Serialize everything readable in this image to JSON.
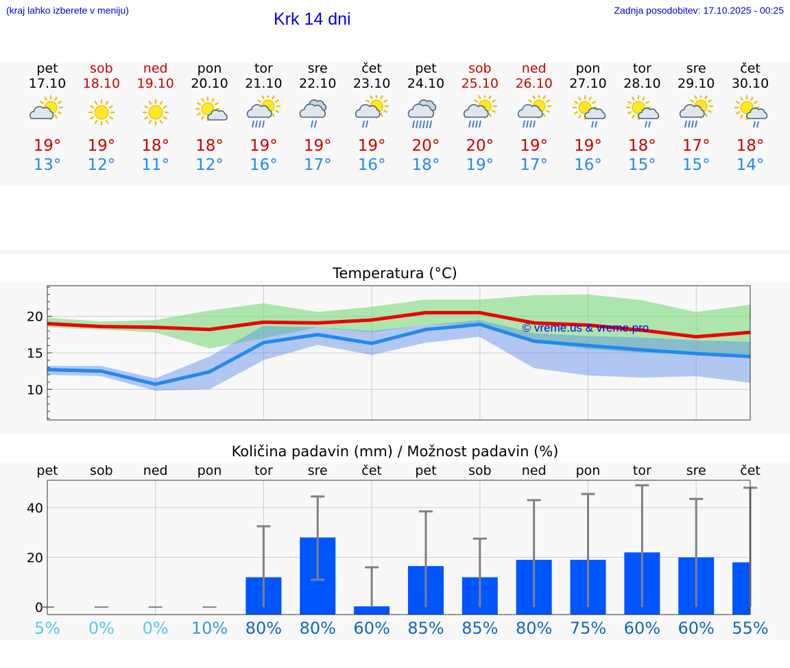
{
  "header": {
    "menu_hint": "(kraj lahko izberete v meniju)",
    "title": "Krk 14 dni",
    "last_update": "Zadnja posodobitev: 17.10.2025 - 00:25"
  },
  "colors": {
    "max": "#cc0000",
    "min": "#2288ee",
    "weekend": "#cc0000",
    "bar": "#0055ff",
    "link": "#0000dd"
  },
  "days": [
    {
      "name": "pet",
      "date": "17.10",
      "weekend": false,
      "icon": "sun-cloud-icon",
      "max": "19°",
      "min": "13°"
    },
    {
      "name": "sob",
      "date": "18.10",
      "weekend": true,
      "icon": "sun-icon",
      "max": "19°",
      "min": "12°"
    },
    {
      "name": "ned",
      "date": "19.10",
      "weekend": true,
      "icon": "sun-icon",
      "max": "18°",
      "min": "11°"
    },
    {
      "name": "pon",
      "date": "20.10",
      "weekend": false,
      "icon": "sun-small-cloud-icon",
      "max": "18°",
      "min": "12°"
    },
    {
      "name": "tor",
      "date": "21.10",
      "weekend": false,
      "icon": "sun-cloud-rain-icon",
      "max": "19°",
      "min": "16°"
    },
    {
      "name": "sre",
      "date": "22.10",
      "weekend": false,
      "icon": "cloud-rain-icon",
      "max": "19°",
      "min": "17°"
    },
    {
      "name": "čet",
      "date": "23.10",
      "weekend": false,
      "icon": "sun-cloud-light-rain-icon",
      "max": "19°",
      "min": "16°"
    },
    {
      "name": "pet",
      "date": "24.10",
      "weekend": false,
      "icon": "cloud-heavy-rain-icon",
      "max": "20°",
      "min": "18°"
    },
    {
      "name": "sob",
      "date": "25.10",
      "weekend": true,
      "icon": "sun-cloud-rain-icon",
      "max": "20°",
      "min": "19°"
    },
    {
      "name": "ned",
      "date": "26.10",
      "weekend": true,
      "icon": "sun-cloud-rain-icon",
      "max": "19°",
      "min": "17°"
    },
    {
      "name": "pon",
      "date": "27.10",
      "weekend": false,
      "icon": "sun-small-cloud-light-rain-icon",
      "max": "19°",
      "min": "16°"
    },
    {
      "name": "tor",
      "date": "28.10",
      "weekend": false,
      "icon": "sun-small-cloud-light-rain-icon",
      "max": "18°",
      "min": "15°"
    },
    {
      "name": "sre",
      "date": "29.10",
      "weekend": false,
      "icon": "sun-cloud-rain-icon",
      "max": "17°",
      "min": "15°"
    },
    {
      "name": "čet",
      "date": "30.10",
      "weekend": false,
      "icon": "sun-small-cloud-light-rain-icon",
      "max": "18°",
      "min": "14°"
    }
  ],
  "chart_data": [
    {
      "type": "line",
      "title": "Temperatura (°C)",
      "watermark": "© vreme.us & vreme.pro",
      "x": [
        0,
        1,
        2,
        3,
        4,
        5,
        6,
        7,
        8,
        9,
        10,
        11,
        12,
        13
      ],
      "ylim": [
        5.8,
        24.2
      ],
      "yticks": [
        10,
        15,
        20
      ],
      "series": [
        {
          "name": "max",
          "color": "#ee0000",
          "values": [
            19.0,
            18.6,
            18.5,
            18.2,
            19.2,
            19.1,
            19.5,
            20.5,
            20.5,
            19.1,
            18.8,
            18.1,
            17.2,
            17.8
          ],
          "band_low": [
            18.5,
            18.2,
            17.8,
            15.6,
            17.0,
            18.5,
            17.8,
            18.8,
            19.0,
            16.5,
            15.5,
            15.0,
            14.8,
            14.5
          ],
          "band_high": [
            19.8,
            19.3,
            19.5,
            20.8,
            21.8,
            20.6,
            21.3,
            22.3,
            22.3,
            22.9,
            23.0,
            22.2,
            20.6,
            21.6
          ]
        },
        {
          "name": "min",
          "color": "#2288ee",
          "values": [
            12.7,
            12.5,
            10.7,
            12.4,
            16.4,
            17.5,
            16.3,
            18.2,
            18.9,
            16.6,
            16.0,
            15.4,
            14.9,
            14.5
          ],
          "band_low": [
            12.0,
            11.8,
            9.8,
            10.0,
            14.0,
            16.1,
            14.7,
            16.4,
            17.2,
            12.9,
            11.9,
            11.6,
            11.8,
            10.9
          ],
          "band_high": [
            13.2,
            13.2,
            11.5,
            14.5,
            18.7,
            18.5,
            18.0,
            18.8,
            19.5,
            17.7,
            17.3,
            17.1,
            16.7,
            16.5
          ]
        }
      ]
    },
    {
      "type": "bar",
      "title": "Količina padavin (mm) / Možnost padavin (%)",
      "categories": [
        "pet",
        "sob",
        "ned",
        "pon",
        "tor",
        "sre",
        "čet",
        "pet",
        "sob",
        "ned",
        "pon",
        "tor",
        "sre",
        "čet"
      ],
      "ylim": [
        -3,
        51
      ],
      "yticks": [
        0,
        20,
        40
      ],
      "values": [
        0,
        0,
        0,
        0,
        12,
        28,
        0.3,
        16.5,
        12,
        19,
        19,
        22,
        20,
        18
      ],
      "err_low": [
        0,
        0,
        0,
        0,
        0,
        11,
        0,
        0,
        0,
        0,
        0,
        0,
        0,
        0
      ],
      "err_high": [
        0,
        0,
        0,
        0,
        32.5,
        44.5,
        16,
        38.5,
        27.5,
        43,
        45.5,
        49,
        43.5,
        48
      ],
      "probability": [
        "5%",
        "0%",
        "0%",
        "10%",
        "80%",
        "80%",
        "60%",
        "85%",
        "85%",
        "80%",
        "75%",
        "60%",
        "60%",
        "55%"
      ],
      "probability_colors": [
        "#55ccee",
        "#55ccee",
        "#55ccee",
        "#3399dd",
        "#1166bb",
        "#1166bb",
        "#1166bb",
        "#1166bb",
        "#1166bb",
        "#1166bb",
        "#1166bb",
        "#1166bb",
        "#1166bb",
        "#1166bb"
      ]
    }
  ]
}
